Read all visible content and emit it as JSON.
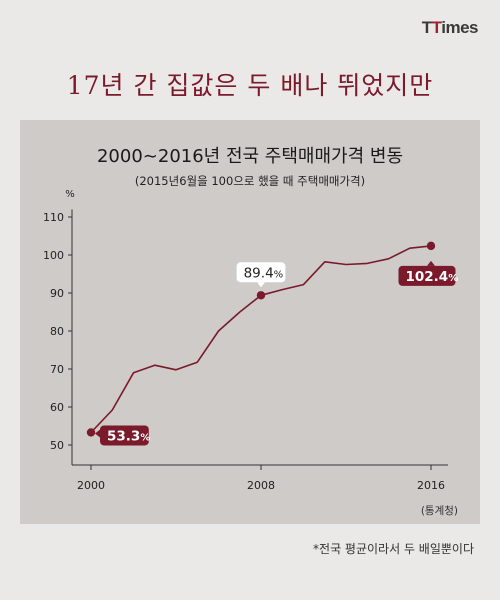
{
  "logo": {
    "prefix": "T",
    "accent": "T",
    "rest": "imes"
  },
  "headline": "17년 간 집값은 두 배나 뛰었지만",
  "footnote": "*전국 평균이라서 두 배일뿐이다",
  "colors": {
    "line": "#7a1a2a",
    "panel": "#cfcbc8",
    "background": "#ebe9e7",
    "callout": "#7a1a2a"
  },
  "chart_data": {
    "type": "line",
    "title": "2000∼2016년 전국 주택매매가격 변동",
    "subtitle": "(2015년6월을 100으로 했을 때 주택매매가격)",
    "ylabel": "%",
    "source": "(통계청)",
    "ylim": [
      45,
      112
    ],
    "yticks": [
      50,
      60,
      70,
      80,
      90,
      100,
      110
    ],
    "xlim": [
      2000,
      2016
    ],
    "xticks": [
      "2000",
      "2008",
      "2016"
    ],
    "grid": false,
    "series": [
      {
        "x": [
          2000,
          2001,
          2002,
          2003,
          2004,
          2005,
          2006,
          2007,
          2008,
          2009,
          2010,
          2011,
          2012,
          2013,
          2014,
          2015,
          2016
        ],
        "values": [
          53.3,
          59.2,
          69.0,
          71.0,
          69.8,
          71.8,
          80.0,
          85.0,
          89.4,
          90.9,
          92.2,
          98.2,
          97.5,
          97.8,
          99.0,
          101.8,
          102.4
        ]
      }
    ],
    "annotations": [
      {
        "x": 2000,
        "y": 53.3,
        "label": "53.3",
        "unit": "%",
        "style": "dark"
      },
      {
        "x": 2008,
        "y": 89.4,
        "label": "89.4",
        "unit": "%",
        "style": "light"
      },
      {
        "x": 2016,
        "y": 102.4,
        "label": "102.4",
        "unit": "%",
        "style": "dark"
      }
    ]
  }
}
